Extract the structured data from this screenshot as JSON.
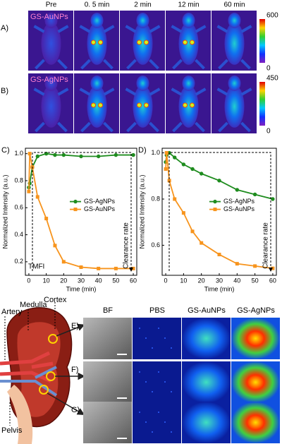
{
  "figure": {
    "column_headers": [
      "Pre",
      "0. 5 min",
      "2 min",
      "12 min",
      "60 min"
    ],
    "rows": [
      {
        "label": "A)",
        "sample": "GS-AuNPs",
        "colorbar_ticks": [
          600,
          0
        ]
      },
      {
        "label": "B)",
        "sample": "GS-AgNPs",
        "colorbar_ticks": [
          450,
          0
        ]
      }
    ]
  },
  "chart_data": [
    {
      "type": "line",
      "panel_label": "C)",
      "x_label": "Time (min)",
      "y_label": "Normalized Intensity (a.u.)",
      "x": [
        0,
        0.5,
        2,
        5,
        10,
        15,
        20,
        30,
        40,
        50,
        60
      ],
      "xlim": [
        -2,
        62
      ],
      "xticks": [
        0,
        10,
        20,
        30,
        40,
        50,
        60
      ],
      "ylim": [
        0.1,
        1.04
      ],
      "yticks": [
        0.2,
        0.4,
        0.6,
        0.8,
        {
          "value": 1,
          "label": "1.0"
        }
      ],
      "legend": "right",
      "series": [
        {
          "name": "GS-AgNPs",
          "color": "#1e8c1e",
          "marker": "circle",
          "values": [
            0.75,
            0.78,
            0.9,
            0.98,
            1.0,
            0.99,
            0.99,
            0.98,
            0.98,
            0.99,
            0.99
          ]
        },
        {
          "name": "GS-AuNPs",
          "color": "#f7941d",
          "marker": "square",
          "values": [
            0.72,
            1.0,
            0.9,
            0.68,
            0.52,
            0.32,
            0.2,
            0.16,
            0.15,
            0.15,
            0.15
          ]
        }
      ],
      "annotations": [
        "TMFI",
        "Clearance rate"
      ]
    },
    {
      "type": "line",
      "panel_label": "D)",
      "x_label": "Time (min)",
      "y_label": "Normalized Intensity (a.u.)",
      "x": [
        0,
        0.5,
        2,
        5,
        10,
        15,
        20,
        30,
        40,
        50,
        60
      ],
      "xlim": [
        -2,
        62
      ],
      "xticks": [
        0,
        10,
        20,
        30,
        40,
        50,
        60
      ],
      "ylim": [
        0.47,
        1.02
      ],
      "yticks": [
        0.6,
        0.8,
        {
          "value": 1,
          "label": "1.0"
        }
      ],
      "legend": "right",
      "series": [
        {
          "name": "GS-AgNPs",
          "color": "#1e8c1e",
          "marker": "circle",
          "values": [
            0.96,
            0.99,
            1.0,
            0.98,
            0.95,
            0.93,
            0.91,
            0.88,
            0.84,
            0.82,
            0.8
          ]
        },
        {
          "name": "GS-AuNPs",
          "color": "#f7941d",
          "marker": "square",
          "values": [
            0.93,
            1.0,
            0.88,
            0.8,
            0.74,
            0.66,
            0.61,
            0.56,
            0.52,
            0.51,
            0.5
          ]
        }
      ],
      "annotations": [
        "Clearance rate"
      ]
    }
  ],
  "kidney": {
    "labels": [
      "Cortex",
      "Medulla",
      "Artery",
      "Pelvis"
    ]
  },
  "tissue": {
    "column_headers": [
      "BF",
      "PBS",
      "GS-AuNPs",
      "GS-AgNPs"
    ],
    "row_labels": [
      "E)",
      "F)",
      "G)"
    ]
  }
}
